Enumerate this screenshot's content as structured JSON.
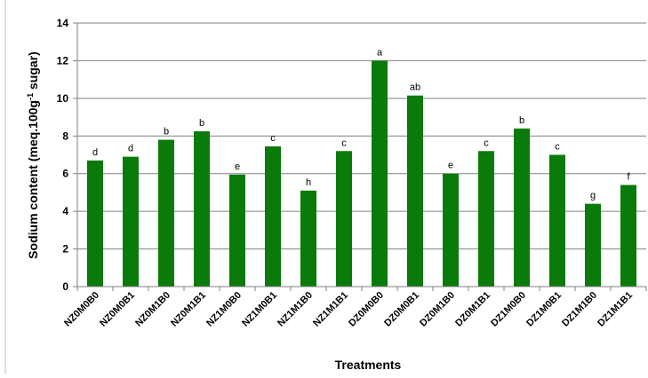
{
  "chart_data": {
    "type": "bar",
    "xlabel": "Treatments",
    "ylabel": "Sodium content (meq.100g",
    "ylabel_sup": "-1",
    "ylabel_tail": " sugar)",
    "ylim": [
      0,
      14
    ],
    "yticks": [
      "0",
      "2",
      "4",
      "6",
      "8",
      "10",
      "12",
      "14"
    ],
    "grid": true,
    "legend": "none",
    "bar_color": "#0a7a0a",
    "categories": [
      "NZ0M0B0",
      "NZ0M0B1",
      "NZ0M1B0",
      "NZ0M1B1",
      "NZ1M0B0",
      "NZ1M0B1",
      "NZ1M1B0",
      "NZ1M1B1",
      "DZ0M0B0",
      "DZ0M0B1",
      "DZ0M1B0",
      "DZ0M1B1",
      "DZ1M0B0",
      "DZ1M0B1",
      "DZ1M1B0",
      "DZ1M1B1"
    ],
    "values": [
      6.7,
      6.9,
      7.8,
      8.25,
      5.95,
      7.45,
      5.1,
      7.2,
      12.0,
      10.15,
      6.0,
      7.2,
      8.4,
      7.0,
      4.4,
      5.4
    ],
    "labels": [
      "d",
      "d",
      "b",
      "b",
      "e",
      "c",
      "h",
      "c",
      "a",
      "ab",
      "e",
      "c",
      "b",
      "c",
      "g",
      "f"
    ]
  }
}
